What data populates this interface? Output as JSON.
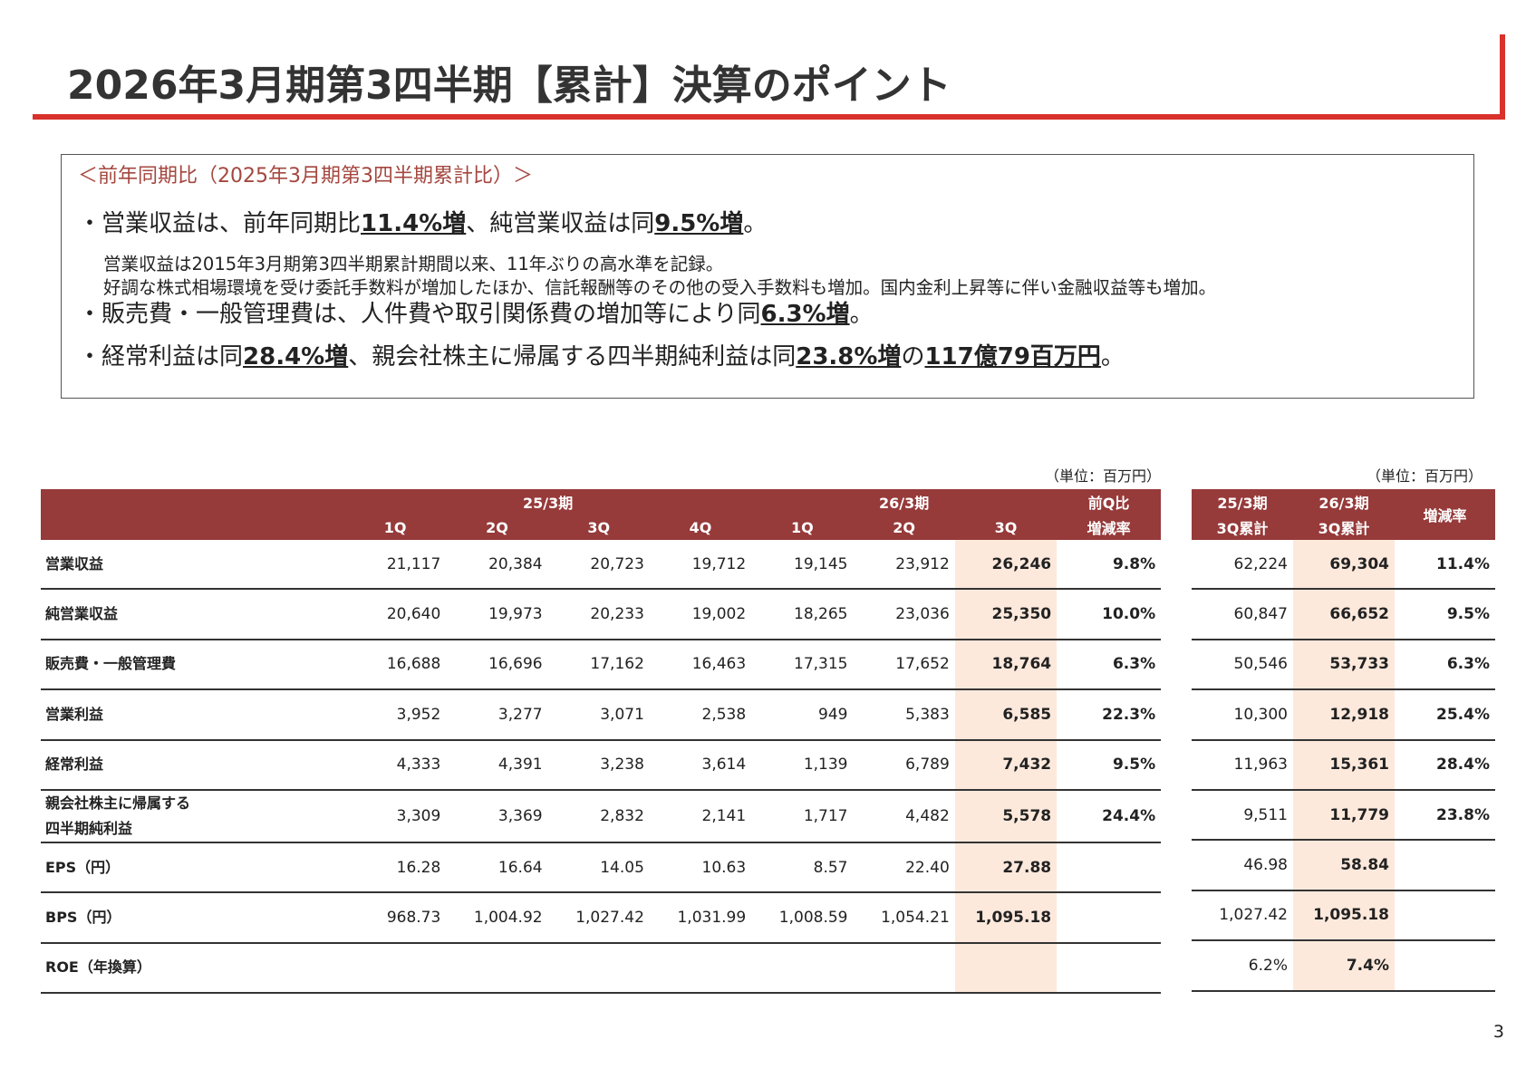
{
  "header": {
    "title": "2026年3月期第3四半期【累計】決算のポイント"
  },
  "summary": {
    "heading": "＜前年同期比（2025年3月期第3四半期累計比）＞",
    "bullets": [
      {
        "segments": [
          {
            "text": "・営業収益は、前年同期比",
            "em": false
          },
          {
            "text": "11.4%増",
            "em": true
          },
          {
            "text": "、純営業収益は同",
            "em": false
          },
          {
            "text": "9.5%増",
            "em": true
          },
          {
            "text": "。",
            "em": false
          }
        ],
        "notes": [
          "営業収益は2015年3月期第3四半期累計期間以来、11年ぶりの高水準を記録。",
          "好調な株式相場環境を受け委託手数料が増加したほか、信託報酬等のその他の受入手数料も増加。国内金利上昇等に伴い金融収益等も増加。"
        ]
      },
      {
        "segments": [
          {
            "text": "・販売費・一般管理費は、人件費や取引関係費の増加等により同",
            "em": false
          },
          {
            "text": "6.3%増",
            "em": true
          },
          {
            "text": "。",
            "em": false
          }
        ]
      },
      {
        "segments": [
          {
            "text": "・経常利益は同",
            "em": false
          },
          {
            "text": "28.4%増",
            "em": true
          },
          {
            "text": "、親会社株主に帰属する四半期純利益は同",
            "em": false
          },
          {
            "text": "23.8%増",
            "em": true
          },
          {
            "text": "の",
            "em": false
          },
          {
            "text": "117億79百万円",
            "em": true
          },
          {
            "text": "。",
            "em": false
          }
        ]
      }
    ]
  },
  "quarterly_table": {
    "unit": "（単位：百万円）",
    "groups": [
      "25/3期",
      "26/3期",
      "前Q比"
    ],
    "columns": [
      "1Q",
      "2Q",
      "3Q",
      "4Q",
      "1Q",
      "2Q",
      "3Q",
      "増減率"
    ],
    "rows": [
      {
        "label": "営業収益",
        "cells": [
          "21,117",
          "20,384",
          "20,723",
          "19,712",
          "19,145",
          "23,912",
          "26,246",
          "9.8%"
        ]
      },
      {
        "label": "純営業収益",
        "cells": [
          "20,640",
          "19,973",
          "20,233",
          "19,002",
          "18,265",
          "23,036",
          "25,350",
          "10.0%"
        ]
      },
      {
        "label": "販売費・一般管理費",
        "cells": [
          "16,688",
          "16,696",
          "17,162",
          "16,463",
          "17,315",
          "17,652",
          "18,764",
          "6.3%"
        ]
      },
      {
        "label": "営業利益",
        "cells": [
          "3,952",
          "3,277",
          "3,071",
          "2,538",
          "949",
          "5,383",
          "6,585",
          "22.3%"
        ]
      },
      {
        "label": "経常利益",
        "cells": [
          "4,333",
          "4,391",
          "3,238",
          "3,614",
          "1,139",
          "6,789",
          "7,432",
          "9.5%"
        ]
      },
      {
        "label": "親会社株主に帰属する\n四半期純利益",
        "cells": [
          "3,309",
          "3,369",
          "2,832",
          "2,141",
          "1,717",
          "4,482",
          "5,578",
          "24.4%"
        ]
      },
      {
        "label": "EPS（円）",
        "cells": [
          "16.28",
          "16.64",
          "14.05",
          "10.63",
          "8.57",
          "22.40",
          "27.88",
          null
        ]
      },
      {
        "label": "BPS（円）",
        "cells": [
          "968.73",
          "1,004.92",
          "1,027.42",
          "1,031.99",
          "1,008.59",
          "1,054.21",
          "1,095.18",
          null
        ]
      },
      {
        "label": "ROE（年換算）",
        "cells": [
          null,
          null,
          null,
          null,
          null,
          null,
          null,
          null
        ]
      }
    ]
  },
  "cumulative_table": {
    "unit": "（単位：百万円）",
    "groups": [
      "25/3期",
      "26/3期",
      "増減率"
    ],
    "columns": [
      "3Q累計",
      "3Q累計"
    ],
    "rows": [
      [
        "62,224",
        "69,304",
        "11.4%"
      ],
      [
        "60,847",
        "66,652",
        "9.5%"
      ],
      [
        "50,546",
        "53,733",
        "6.3%"
      ],
      [
        "10,300",
        "12,918",
        "25.4%"
      ],
      [
        "11,963",
        "15,361",
        "28.4%"
      ],
      [
        "9,511",
        "11,779",
        "23.8%"
      ],
      [
        "46.98",
        "58.84",
        null
      ],
      [
        "1,027.42",
        "1,095.18",
        null
      ],
      [
        "6.2%",
        "7.4%",
        null
      ]
    ]
  },
  "footer": {
    "page": "3"
  }
}
